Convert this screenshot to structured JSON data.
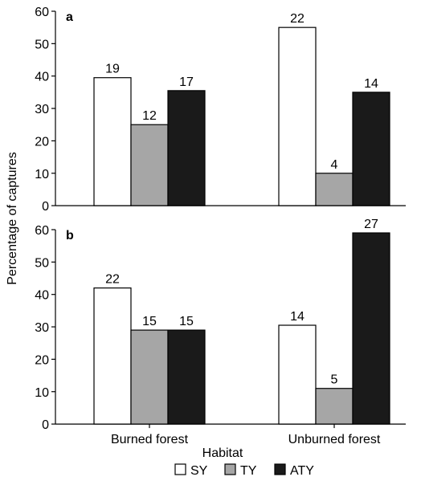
{
  "chart_data": {
    "type": "bar",
    "ylabel": "Percentage of captures",
    "xlabel": "Habitat",
    "categories": [
      "Burned forest",
      "Unburned forest"
    ],
    "series_colors": {
      "SY": "#ffffff",
      "TY": "#a6a6a6",
      "ATY": "#1a1a1a"
    },
    "legend": {
      "position": "bottom-center",
      "entries": [
        {
          "name": "SY",
          "color": "#ffffff"
        },
        {
          "name": "TY",
          "color": "#a6a6a6"
        },
        {
          "name": "ATY",
          "color": "#1a1a1a"
        }
      ]
    },
    "panels": [
      {
        "panel_label": "a",
        "ylim": [
          0,
          60
        ],
        "yticks": [
          0,
          10,
          20,
          30,
          40,
          50,
          60
        ],
        "series": [
          {
            "name": "SY",
            "values": [
              39.5,
              55
            ],
            "data_labels": [
              "19",
              "22"
            ]
          },
          {
            "name": "TY",
            "values": [
              25,
              10
            ],
            "data_labels": [
              "12",
              "4"
            ]
          },
          {
            "name": "ATY",
            "values": [
              35.5,
              35
            ],
            "data_labels": [
              "17",
              "14"
            ]
          }
        ]
      },
      {
        "panel_label": "b",
        "ylim": [
          0,
          60
        ],
        "yticks": [
          0,
          10,
          20,
          30,
          40,
          50,
          60
        ],
        "series": [
          {
            "name": "SY",
            "values": [
              42,
              30.5
            ],
            "data_labels": [
              "22",
              "14"
            ]
          },
          {
            "name": "TY",
            "values": [
              29,
              11
            ],
            "data_labels": [
              "15",
              "5"
            ]
          },
          {
            "name": "ATY",
            "values": [
              29,
              59
            ],
            "data_labels": [
              "15",
              "27"
            ]
          }
        ]
      }
    ]
  }
}
